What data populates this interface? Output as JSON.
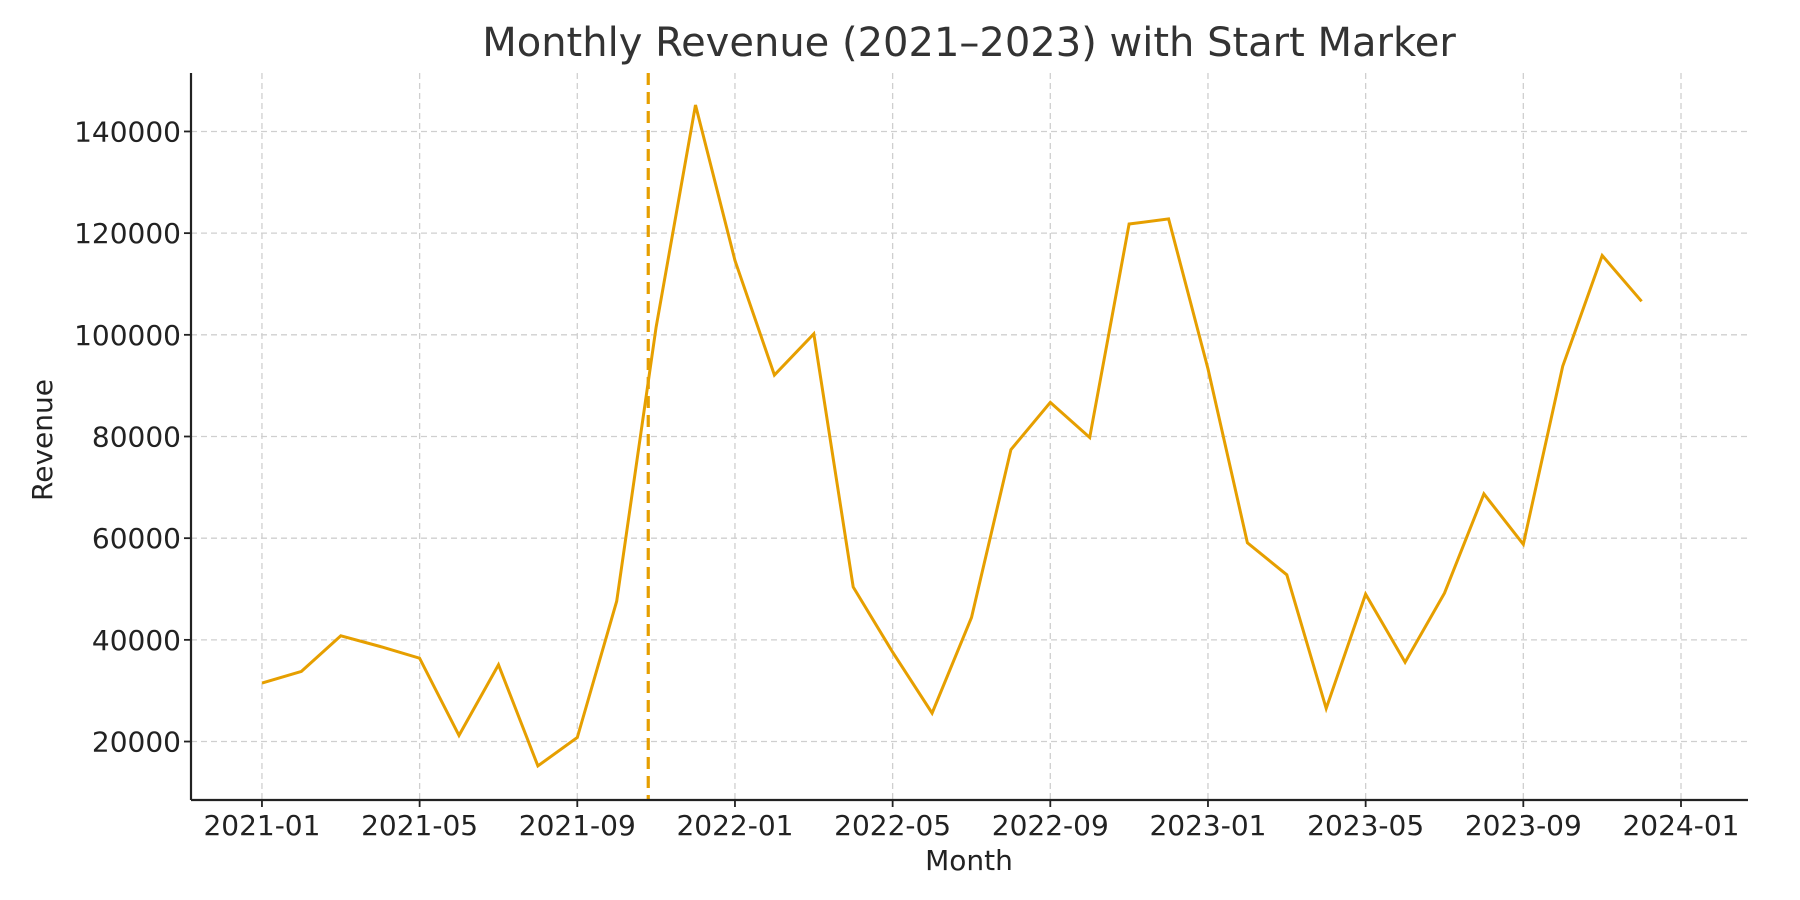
{
  "chart_data": {
    "type": "line",
    "title": "Monthly Revenue (2021–2023) with Start Marker",
    "xlabel": "Month",
    "ylabel": "Revenue",
    "grid": true,
    "x_tick_labels": [
      "2021-01",
      "2021-05",
      "2021-09",
      "2022-01",
      "2022-05",
      "2022-09",
      "2023-01",
      "2023-05",
      "2023-09",
      "2024-01"
    ],
    "y_ticks": [
      20000,
      40000,
      60000,
      80000,
      100000,
      120000,
      140000
    ],
    "ylim": [
      8500,
      151500
    ],
    "xlim_months": [
      -1.8,
      37.7
    ],
    "marker": {
      "label": "Start Marker",
      "x_month": 9.8
    },
    "series": [
      {
        "name": "Revenue",
        "color": "#E69F00",
        "x": [
          "2021-01",
          "2021-02",
          "2021-03",
          "2021-04",
          "2021-05",
          "2021-06",
          "2021-07",
          "2021-08",
          "2021-09",
          "2021-10",
          "2021-11",
          "2021-12",
          "2022-01",
          "2022-02",
          "2022-03",
          "2022-04",
          "2022-05",
          "2022-06",
          "2022-07",
          "2022-08",
          "2022-09",
          "2022-10",
          "2022-11",
          "2022-12",
          "2023-01",
          "2023-02",
          "2023-03",
          "2023-04",
          "2023-05",
          "2023-06",
          "2023-07",
          "2023-08",
          "2023-09",
          "2023-10",
          "2023-11",
          "2023-12"
        ],
        "values": [
          31500,
          33800,
          40800,
          38700,
          36400,
          21200,
          35100,
          15200,
          20800,
          47600,
          101500,
          145200,
          114600,
          92100,
          100200,
          50400,
          37600,
          25600,
          44400,
          77400,
          86700,
          79800,
          121800,
          122800,
          93300,
          59100,
          52800,
          26500,
          49000,
          35600,
          49200,
          68700,
          58800,
          93800,
          115600,
          106600
        ]
      }
    ]
  }
}
